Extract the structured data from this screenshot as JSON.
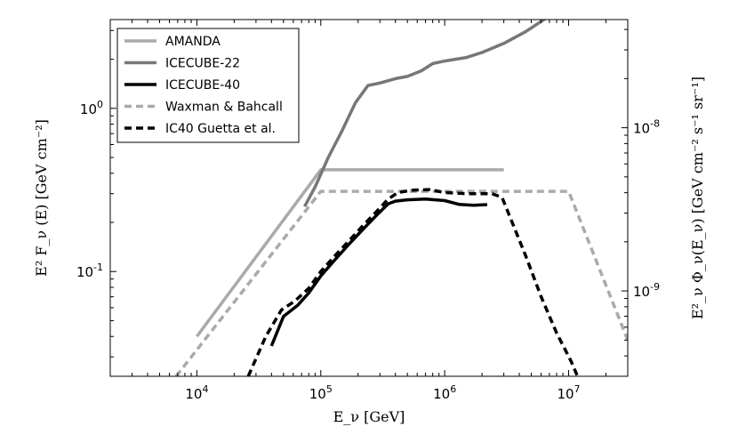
{
  "chart_data": {
    "type": "line",
    "xscale": "log",
    "yscale": "log",
    "xlim": [
      2000,
      30000000
    ],
    "ylim": [
      0.0228,
      3.5
    ],
    "right_ylim": [
      3e-10,
      4.6e-08
    ],
    "xlabel": "E_ν  [GeV]",
    "ylabel": "E² F_ν (E) [GeV cm⁻²]",
    "right_ylabel": "E²_ν Φ_ν(E_ν)  [GeV cm⁻² s⁻¹ sr⁻¹]",
    "x_ticks": [
      {
        "value": 10000,
        "base": "10",
        "exp": "4"
      },
      {
        "value": 100000,
        "base": "10",
        "exp": "5"
      },
      {
        "value": 1000000,
        "base": "10",
        "exp": "6"
      },
      {
        "value": 10000000,
        "base": "10",
        "exp": "7"
      }
    ],
    "y_ticks": [
      {
        "value": 0.1,
        "base": "10",
        "exp": "-1"
      },
      {
        "value": 1,
        "base": "10",
        "exp": "0"
      }
    ],
    "right_y_ticks": [
      {
        "value": 1e-09,
        "base": "10",
        "exp": "-9"
      },
      {
        "value": 1e-08,
        "base": "10",
        "exp": "-8"
      }
    ],
    "legend_position": "top-left",
    "series": [
      {
        "name": "AMANDA",
        "color": "#aaaaaa",
        "dash": "solid",
        "x": [
          10000,
          100000,
          3000000
        ],
        "y": [
          0.04,
          0.42,
          0.42
        ]
      },
      {
        "name": "ICECUBE-22",
        "color": "#777777",
        "dash": "solid",
        "x": [
          74000,
          90000,
          115000,
          150000,
          190000,
          240000,
          300000,
          400000,
          500000,
          650000,
          800000,
          1000000,
          1500000,
          2000000,
          3000000,
          4500000,
          6500000
        ],
        "y": [
          0.25,
          0.33,
          0.5,
          0.74,
          1.08,
          1.38,
          1.43,
          1.52,
          1.57,
          1.7,
          1.88,
          1.95,
          2.05,
          2.2,
          2.5,
          2.95,
          3.55
        ]
      },
      {
        "name": "ICECUBE-40",
        "color": "#000000",
        "dash": "solid",
        "x": [
          40000,
          50000,
          65000,
          80000,
          100000,
          130000,
          170000,
          220000,
          280000,
          350000,
          400000,
          500000,
          700000,
          1000000,
          1300000,
          1700000,
          2200000
        ],
        "y": [
          0.035,
          0.053,
          0.062,
          0.074,
          0.094,
          0.118,
          0.148,
          0.182,
          0.22,
          0.26,
          0.27,
          0.275,
          0.278,
          0.272,
          0.258,
          0.255,
          0.257
        ]
      },
      {
        "name": "Waxman & Bahcall",
        "color": "#aaaaaa",
        "dash": "dashed",
        "x": [
          6800,
          100000,
          10000000,
          30000000
        ],
        "y": [
          0.0228,
          0.31,
          0.31,
          0.038
        ]
      },
      {
        "name": "IC40 Guetta et al.",
        "color": "#000000",
        "dash": "dashed",
        "x": [
          26000,
          36000,
          48000,
          62000,
          80000,
          100000,
          130000,
          170000,
          220000,
          280000,
          350000,
          420000,
          550000,
          750000,
          1000000,
          1500000,
          2400000,
          2900000,
          3500000,
          4500000,
          6000000,
          8000000,
          10500000,
          11800000
        ],
        "y": [
          0.0228,
          0.04,
          0.058,
          0.066,
          0.079,
          0.1,
          0.125,
          0.155,
          0.192,
          0.232,
          0.278,
          0.305,
          0.315,
          0.318,
          0.305,
          0.3,
          0.3,
          0.285,
          0.2,
          0.125,
          0.07,
          0.042,
          0.028,
          0.0228
        ]
      }
    ]
  }
}
